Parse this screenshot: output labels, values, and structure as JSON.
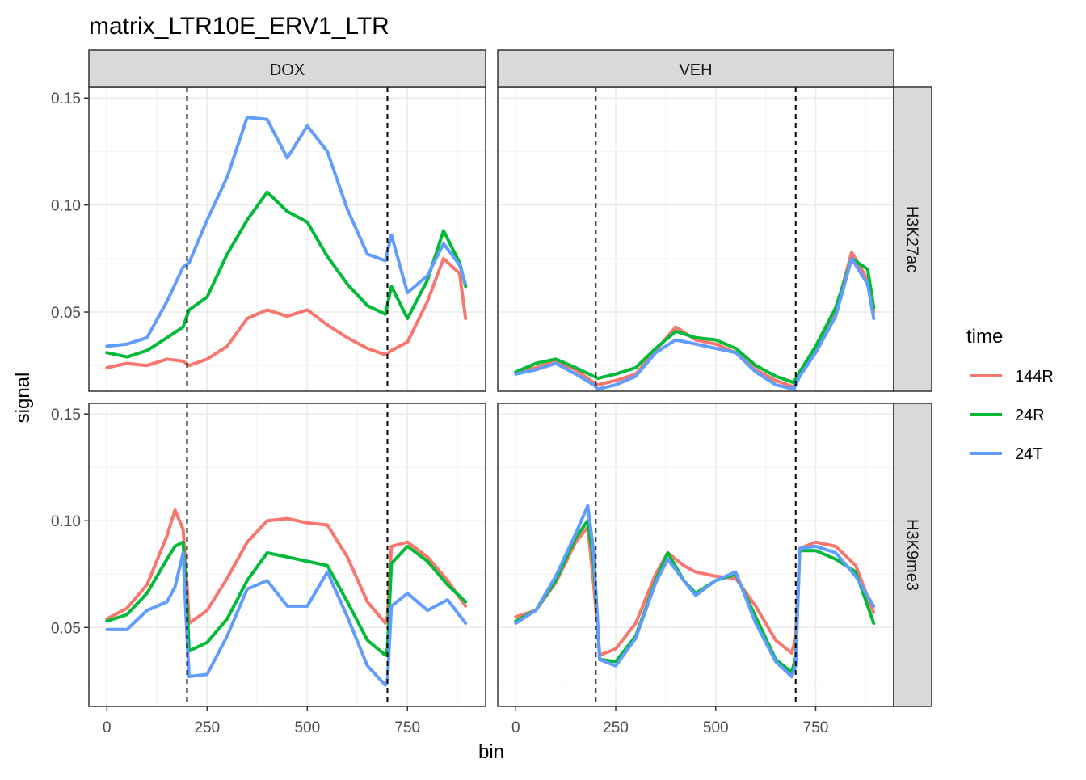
{
  "chart_data": {
    "type": "line",
    "title": "matrix_LTR10E_ERV1_LTR",
    "xlabel": "bin",
    "ylabel": "signal",
    "x_ticks": [
      0,
      250,
      500,
      750
    ],
    "xlim": [
      -45,
      945
    ],
    "ylim": [
      0.013,
      0.155
    ],
    "y_ticks": [
      "0.05",
      "0.10",
      "0.15"
    ],
    "y_tick_values": [
      0.05,
      0.1,
      0.15
    ],
    "vlines": [
      200,
      700
    ],
    "grid": true,
    "legend": {
      "title": "time",
      "placement": "right",
      "entries": [
        {
          "label": "144R",
          "color": "#F8766D"
        },
        {
          "label": "24R",
          "color": "#00BA38"
        },
        {
          "label": "24T",
          "color": "#619CFF"
        }
      ]
    },
    "facet_columns": [
      "DOX",
      "VEH"
    ],
    "facet_rows": [
      "H3K27ac",
      "H3K9me3"
    ],
    "panels": [
      {
        "column": "DOX",
        "row": "H3K27ac",
        "x": [
          0,
          50,
          100,
          150,
          190,
          205,
          250,
          300,
          350,
          400,
          450,
          500,
          550,
          600,
          650,
          695,
          710,
          750,
          800,
          840,
          880,
          895
        ],
        "series": [
          {
            "name": "144R",
            "values": [
              0.024,
              0.026,
              0.025,
              0.028,
              0.027,
              0.025,
              0.028,
              0.034,
              0.047,
              0.051,
              0.048,
              0.051,
              0.044,
              0.038,
              0.033,
              0.03,
              0.032,
              0.036,
              0.055,
              0.075,
              0.068,
              0.047
            ]
          },
          {
            "name": "24R",
            "values": [
              0.031,
              0.029,
              0.032,
              0.038,
              0.043,
              0.051,
              0.057,
              0.077,
              0.093,
              0.106,
              0.097,
              0.092,
              0.076,
              0.063,
              0.053,
              0.049,
              0.062,
              0.047,
              0.065,
              0.088,
              0.073,
              0.062
            ]
          },
          {
            "name": "24T",
            "values": [
              0.034,
              0.035,
              0.038,
              0.055,
              0.071,
              0.073,
              0.093,
              0.113,
              0.141,
              0.14,
              0.122,
              0.137,
              0.125,
              0.098,
              0.077,
              0.074,
              0.086,
              0.059,
              0.067,
              0.082,
              0.072,
              0.063
            ]
          }
        ]
      },
      {
        "column": "VEH",
        "row": "H3K27ac",
        "x": [
          0,
          50,
          100,
          150,
          195,
          205,
          250,
          300,
          350,
          400,
          450,
          500,
          550,
          600,
          650,
          695,
          710,
          750,
          800,
          840,
          880,
          895
        ],
        "series": [
          {
            "name": "144R",
            "values": [
              0.022,
              0.024,
              0.027,
              0.023,
              0.017,
              0.016,
              0.018,
              0.021,
              0.032,
              0.043,
              0.037,
              0.035,
              0.031,
              0.023,
              0.018,
              0.015,
              0.021,
              0.033,
              0.05,
              0.078,
              0.065,
              0.05
            ]
          },
          {
            "name": "24R",
            "values": [
              0.022,
              0.026,
              0.028,
              0.024,
              0.02,
              0.019,
              0.021,
              0.024,
              0.033,
              0.041,
              0.038,
              0.037,
              0.033,
              0.025,
              0.02,
              0.017,
              0.022,
              0.034,
              0.052,
              0.075,
              0.07,
              0.052
            ]
          },
          {
            "name": "24T",
            "values": [
              0.021,
              0.023,
              0.026,
              0.021,
              0.016,
              0.014,
              0.016,
              0.02,
              0.031,
              0.037,
              0.035,
              0.033,
              0.031,
              0.022,
              0.016,
              0.014,
              0.02,
              0.031,
              0.048,
              0.075,
              0.063,
              0.047
            ]
          }
        ]
      },
      {
        "column": "DOX",
        "row": "H3K9me3",
        "x": [
          0,
          50,
          100,
          150,
          170,
          190,
          200,
          205,
          250,
          300,
          350,
          400,
          450,
          500,
          550,
          600,
          650,
          695,
          700,
          710,
          750,
          800,
          850,
          895
        ],
        "series": [
          {
            "name": "144R",
            "values": [
              0.054,
              0.059,
              0.07,
              0.093,
              0.105,
              0.096,
              0.07,
              0.052,
              0.058,
              0.073,
              0.09,
              0.1,
              0.101,
              0.099,
              0.098,
              0.083,
              0.062,
              0.052,
              0.055,
              0.088,
              0.09,
              0.083,
              0.072,
              0.06
            ]
          },
          {
            "name": "24R",
            "values": [
              0.053,
              0.056,
              0.066,
              0.082,
              0.088,
              0.09,
              0.06,
              0.039,
              0.043,
              0.054,
              0.072,
              0.085,
              0.083,
              0.081,
              0.079,
              0.062,
              0.044,
              0.037,
              0.04,
              0.08,
              0.088,
              0.081,
              0.07,
              0.062
            ]
          },
          {
            "name": "24T",
            "values": [
              0.049,
              0.049,
              0.058,
              0.062,
              0.069,
              0.085,
              0.045,
              0.027,
              0.028,
              0.046,
              0.068,
              0.072,
              0.06,
              0.06,
              0.076,
              0.055,
              0.032,
              0.023,
              0.025,
              0.06,
              0.066,
              0.058,
              0.063,
              0.052
            ]
          }
        ]
      },
      {
        "column": "VEH",
        "row": "H3K9me3",
        "x": [
          0,
          50,
          100,
          150,
          180,
          195,
          210,
          250,
          300,
          350,
          380,
          420,
          450,
          500,
          550,
          600,
          650,
          690,
          700,
          710,
          750,
          800,
          850,
          895
        ],
        "series": [
          {
            "name": "144R",
            "values": [
              0.055,
              0.058,
              0.071,
              0.09,
              0.097,
              0.07,
              0.037,
              0.04,
              0.052,
              0.075,
              0.085,
              0.079,
              0.076,
              0.074,
              0.073,
              0.06,
              0.044,
              0.038,
              0.045,
              0.087,
              0.09,
              0.088,
              0.079,
              0.057
            ]
          },
          {
            "name": "24R",
            "values": [
              0.053,
              0.058,
              0.072,
              0.092,
              0.1,
              0.08,
              0.035,
              0.034,
              0.046,
              0.072,
              0.085,
              0.072,
              0.066,
              0.072,
              0.075,
              0.055,
              0.035,
              0.029,
              0.036,
              0.086,
              0.086,
              0.082,
              0.076,
              0.052
            ]
          },
          {
            "name": "24T",
            "values": [
              0.052,
              0.058,
              0.074,
              0.094,
              0.107,
              0.085,
              0.035,
              0.032,
              0.045,
              0.071,
              0.082,
              0.072,
              0.065,
              0.072,
              0.076,
              0.052,
              0.034,
              0.027,
              0.032,
              0.087,
              0.088,
              0.085,
              0.074,
              0.06
            ]
          }
        ]
      }
    ]
  }
}
